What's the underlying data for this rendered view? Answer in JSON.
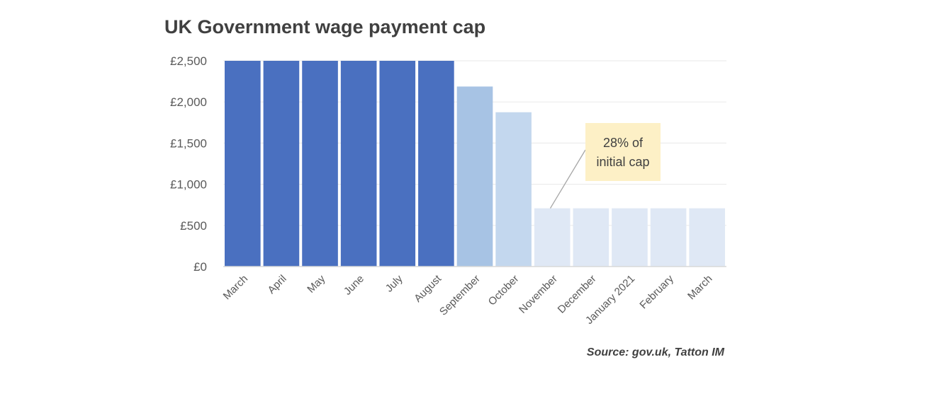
{
  "chart_data": {
    "type": "bar",
    "title": "UK Government wage payment cap",
    "source": "Source: gov.uk, Tatton IM",
    "categories": [
      "March",
      "April",
      "May",
      "June",
      "July",
      "August",
      "September",
      "October",
      "November",
      "December",
      "January 2021",
      "February",
      "March"
    ],
    "values": [
      2500,
      2500,
      2500,
      2500,
      2500,
      2500,
      2187.5,
      1875,
      708,
      708,
      708,
      708,
      708
    ],
    "bar_colors": [
      "#4a70c0",
      "#4a70c0",
      "#4a70c0",
      "#4a70c0",
      "#4a70c0",
      "#4a70c0",
      "#a7c3e4",
      "#c3d7ee",
      "#dfe8f5",
      "#dfe8f5",
      "#dfe8f5",
      "#dfe8f5",
      "#dfe8f5"
    ],
    "ylim": [
      0,
      2500
    ],
    "yticks": [
      {
        "value": 0,
        "label": "£0"
      },
      {
        "value": 500,
        "label": "£500"
      },
      {
        "value": 1000,
        "label": "£1,000"
      },
      {
        "value": 1500,
        "label": "£1,500"
      },
      {
        "value": 2000,
        "label": "£2,000"
      },
      {
        "value": 2500,
        "label": "£2,500"
      }
    ],
    "grid": true,
    "annotation": {
      "lines": [
        "28% of",
        "initial cap"
      ],
      "target_category_index": 8,
      "background": "#fdf0c6"
    }
  }
}
